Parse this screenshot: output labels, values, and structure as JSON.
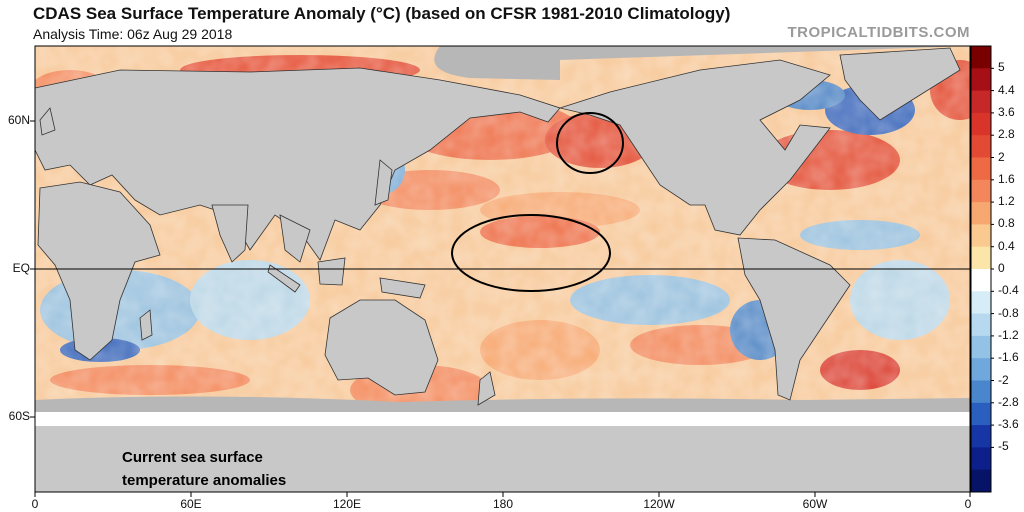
{
  "header": {
    "title": "CDAS Sea Surface Temperature Anomaly (°C) (based on CFSR 1981-2010 Climatology)",
    "analysis_time": "Analysis Time: 06z Aug 29 2018",
    "credit": "TROPICALTIDBITS.COM"
  },
  "axes": {
    "lat_labels": [
      "60N",
      "EQ",
      "60S"
    ],
    "lon_labels": [
      "0",
      "60E",
      "120E",
      "180",
      "120W",
      "60W",
      "0"
    ]
  },
  "colorbar": {
    "labels": [
      "5",
      "4.4",
      "3.6",
      "2.8",
      "2",
      "1.6",
      "1.2",
      "0.8",
      "0.4",
      "0",
      "-0.4",
      "-0.8",
      "-1.2",
      "-1.6",
      "-2",
      "-2.8",
      "-3.6",
      "-5"
    ],
    "colors": [
      "#7a0000",
      "#a50f15",
      "#c62828",
      "#d8342a",
      "#e34a33",
      "#ee6a45",
      "#f3865a",
      "#f7a770",
      "#f9c98f",
      "#fbe5a8",
      "#ffffff",
      "#d6ecf7",
      "#b6d9ef",
      "#92c2e6",
      "#6fa8dc",
      "#4a86cc",
      "#2b5fbf",
      "#1736a6",
      "#0c1f8a",
      "#061366"
    ]
  },
  "annotation": {
    "line1": "Current sea surface",
    "line2": "temperature anomalies"
  },
  "colors": {
    "land": "#c8c8c8",
    "ice": "#b7b7b7",
    "equator_line": "#000000"
  }
}
